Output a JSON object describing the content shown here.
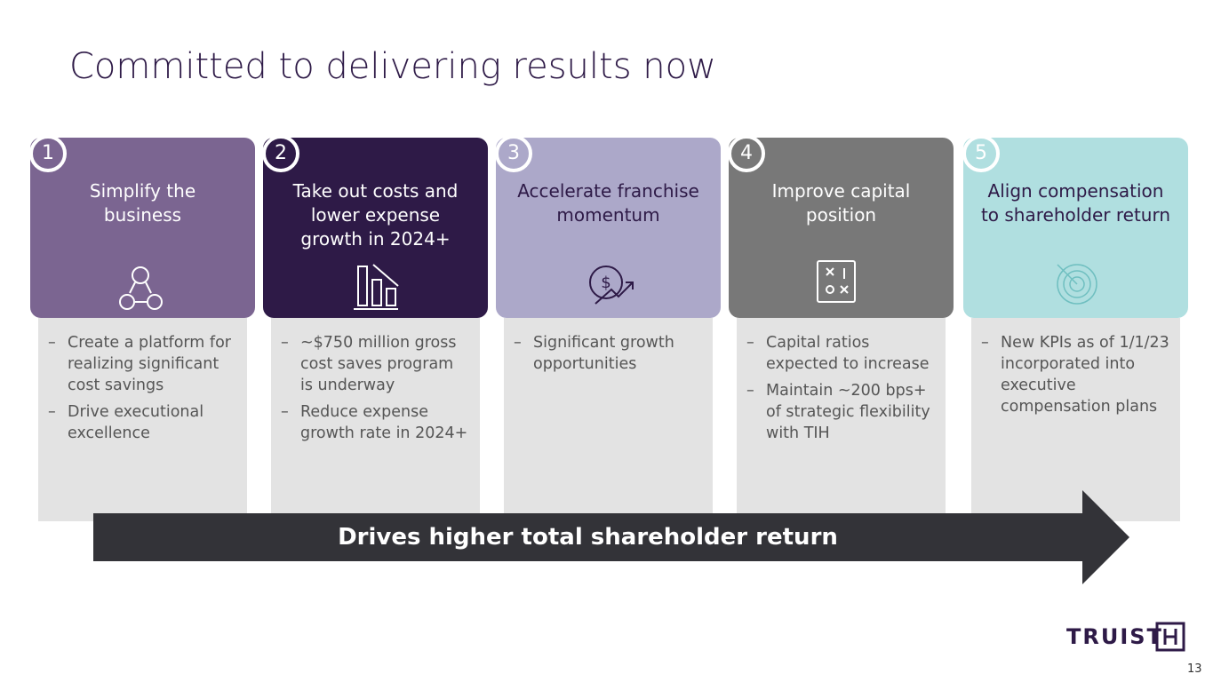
{
  "header": {
    "title": "Committed to delivering results now"
  },
  "cards": [
    {
      "number": "1",
      "heading_lines": [
        "Simplify the",
        "business"
      ],
      "bullets": [
        "Create a platform for realizing significant cost savings",
        "Drive executional excellence"
      ]
    },
    {
      "number": "2",
      "heading_lines": [
        "Take out costs and",
        "lower expense",
        "growth in 2024+"
      ],
      "bullets": [
        "~$750 million gross cost saves program is underway",
        "Reduce expense growth rate in 2024+"
      ]
    },
    {
      "number": "3",
      "heading_lines": [
        "Accelerate franchise",
        "momentum"
      ],
      "bullets": [
        "Significant growth opportunities"
      ]
    },
    {
      "number": "4",
      "heading_lines": [
        "Improve capital",
        "position"
      ],
      "bullets": [
        "Capital ratios expected to increase",
        "Maintain ~200 bps+ of strategic flexibility with TIH"
      ]
    },
    {
      "number": "5",
      "heading_lines": [
        "Align compensation",
        "to shareholder return"
      ],
      "bullets": [
        "New KPIs as of 1/1/23 incorporated into executive compensation plans"
      ]
    }
  ],
  "arrow": {
    "label": "Drives higher total shareholder return"
  },
  "footer": {
    "logo": "TRUIST",
    "page_number": "13"
  }
}
